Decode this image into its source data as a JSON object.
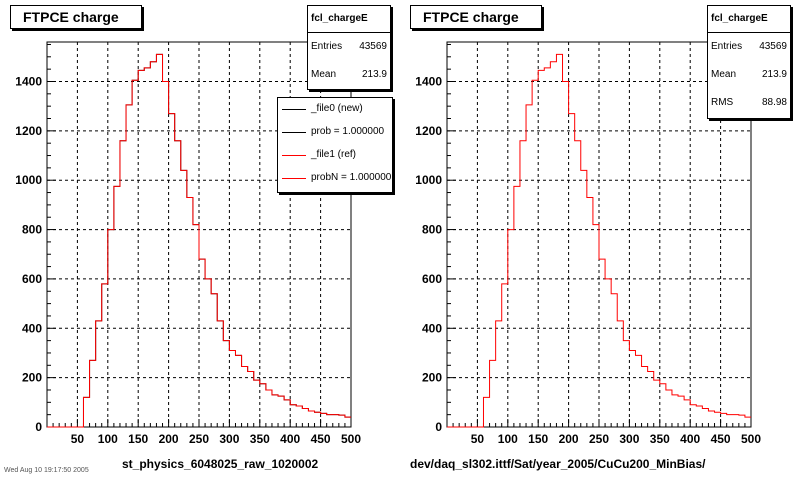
{
  "charts": [
    {
      "title": "FTPCE charge",
      "stats": {
        "name": "fcl_chargeE",
        "rows": [
          {
            "label": "Entries",
            "value": "43569"
          },
          {
            "label": "Mean",
            "value": "213.9"
          }
        ]
      },
      "xtitle": "st_physics_6048025_raw_1020002",
      "legend": [
        {
          "label": "_file0 (new)",
          "color": "#000000"
        },
        {
          "label": "prob = 1.000000",
          "color": "#000000"
        },
        {
          "label": "_file1 (ref)",
          "color": "#ff0000"
        },
        {
          "label": "probN = 1.000000",
          "color": "#ff0000"
        }
      ]
    },
    {
      "title": "FTPCE charge",
      "stats": {
        "name": "fcl_chargeE",
        "rows": [
          {
            "label": "Entries",
            "value": "43569"
          },
          {
            "label": "Mean",
            "value": "213.9"
          },
          {
            "label": "RMS",
            "value": "88.98"
          }
        ]
      },
      "xtitle": "dev/daq_sl302.ittf/Sat/year_2005/CuCu200_MinBias/"
    }
  ],
  "footer": "Wed Aug 10 19:17:50 2005",
  "chart_data": {
    "type": "histogram",
    "bin_width": 10,
    "x": [
      0,
      10,
      20,
      30,
      40,
      50,
      60,
      70,
      80,
      90,
      100,
      110,
      120,
      130,
      140,
      150,
      160,
      170,
      180,
      190,
      200,
      210,
      220,
      230,
      240,
      250,
      260,
      270,
      280,
      290,
      300,
      310,
      320,
      330,
      340,
      350,
      360,
      370,
      380,
      390,
      400,
      410,
      420,
      430,
      440,
      450,
      460,
      470,
      480,
      490
    ],
    "values": [
      0,
      0,
      0,
      0,
      0,
      0,
      120,
      270,
      430,
      580,
      800,
      975,
      1160,
      1305,
      1405,
      1445,
      1455,
      1480,
      1510,
      1400,
      1270,
      1160,
      1040,
      930,
      820,
      680,
      600,
      540,
      430,
      350,
      310,
      290,
      245,
      225,
      190,
      175,
      150,
      130,
      125,
      110,
      90,
      85,
      75,
      65,
      60,
      55,
      50,
      50,
      48,
      40
    ],
    "xlim": [
      0,
      500
    ],
    "ylim": [
      0,
      1560
    ],
    "xticks": [
      50,
      100,
      150,
      200,
      250,
      300,
      350,
      400,
      450,
      500
    ],
    "yticks": [
      0,
      200,
      400,
      600,
      800,
      1000,
      1200,
      1400
    ],
    "grid": true,
    "series_colors": {
      "new": "#000000",
      "ref": "#ff0000"
    }
  }
}
